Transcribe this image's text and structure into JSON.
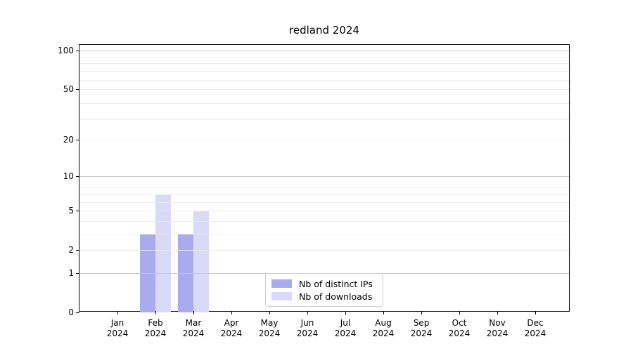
{
  "chart_data": {
    "type": "bar",
    "title": "redland 2024",
    "year": "2024",
    "categories": [
      "Jan",
      "Feb",
      "Mar",
      "Apr",
      "May",
      "Jun",
      "Jul",
      "Aug",
      "Sep",
      "Oct",
      "Nov",
      "Dec"
    ],
    "series": [
      {
        "name": "Nb of distinct IPs",
        "color": "#aaaaee",
        "values": [
          0,
          3,
          3,
          0,
          0,
          0,
          0,
          0,
          0,
          0,
          0,
          0
        ]
      },
      {
        "name": "Nb of downloads",
        "color": "#d9d9f8",
        "values": [
          0,
          7,
          5,
          0,
          0,
          0,
          0,
          0,
          0,
          0,
          0,
          0
        ]
      }
    ],
    "xlabel": "",
    "ylabel": "",
    "yscale": "log1p",
    "ylim": [
      0,
      110
    ],
    "yticks": [
      0,
      1,
      2,
      5,
      10,
      20,
      50,
      100
    ],
    "major_gridlines": [
      1,
      10,
      100
    ],
    "minor_gridlines": [
      2,
      3,
      4,
      5,
      6,
      7,
      8,
      20,
      29,
      39,
      50,
      59,
      69,
      79,
      89
    ],
    "grid": true,
    "legend_position": "lower center",
    "colors": {
      "major_grid": "#c8c8c8",
      "minor_grid": "#ececec",
      "axis": "#000000",
      "background": "#ffffff"
    }
  }
}
